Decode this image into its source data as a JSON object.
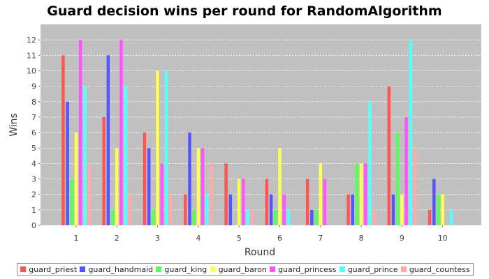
{
  "chart_data": {
    "type": "bar",
    "title": "Guard decision wins per round for RandomAlgorithm",
    "xlabel": "Round",
    "ylabel": "Wins",
    "ylim": [
      0,
      13
    ],
    "yticks": [
      0,
      1,
      2,
      3,
      4,
      5,
      6,
      7,
      8,
      9,
      10,
      11,
      12
    ],
    "grid": true,
    "legend_position": "bottom",
    "categories": [
      "1",
      "2",
      "3",
      "4",
      "5",
      "6",
      "7",
      "8",
      "9",
      "10"
    ],
    "series": [
      {
        "name": "guard_priest",
        "color": "#ff5555",
        "values": [
          11,
          7,
          6,
          2,
          4,
          3,
          3,
          2,
          9,
          1
        ]
      },
      {
        "name": "guard_handmaid",
        "color": "#5555ff",
        "values": [
          8,
          11,
          5,
          6,
          2,
          2,
          1,
          2,
          2,
          3
        ]
      },
      {
        "name": "guard_king",
        "color": "#55ff55",
        "values": [
          3,
          1,
          1,
          1,
          0,
          1,
          1,
          4,
          6,
          2
        ]
      },
      {
        "name": "guard_baron",
        "color": "#ffff55",
        "values": [
          6,
          5,
          10,
          5,
          3,
          5,
          4,
          4,
          2,
          2
        ]
      },
      {
        "name": "guard_princess",
        "color": "#ff55ff",
        "values": [
          12,
          12,
          4,
          5,
          3,
          2,
          3,
          4,
          7,
          0
        ]
      },
      {
        "name": "guard_prince",
        "color": "#55ffff",
        "values": [
          9,
          9,
          10,
          2,
          1,
          1,
          0,
          8,
          12,
          1
        ]
      },
      {
        "name": "guard_countess",
        "color": "#ffaaaa",
        "values": [
          4,
          2,
          2,
          4,
          1,
          0,
          0,
          1,
          5,
          0
        ]
      }
    ]
  }
}
